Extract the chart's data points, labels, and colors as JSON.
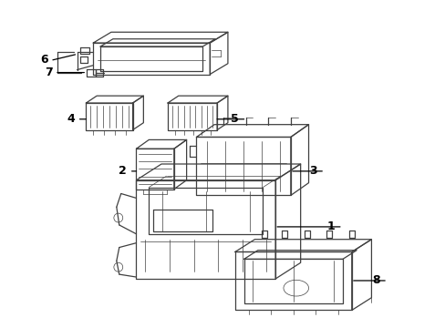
{
  "bg_color": "#ffffff",
  "line_color": "#404040",
  "label_color": "#000000",
  "lw": 0.9,
  "lw_thin": 0.5,
  "fig_w": 4.89,
  "fig_h": 3.6,
  "dpi": 100
}
